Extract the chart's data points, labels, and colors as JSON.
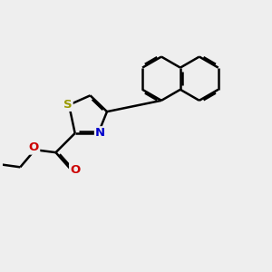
{
  "background_color": "#eeeeee",
  "bond_color": "#000000",
  "sulfur_color": "#999900",
  "nitrogen_color": "#0000cc",
  "oxygen_color": "#cc0000",
  "bond_width": 1.8,
  "dbo": 0.055,
  "figsize": [
    3.0,
    3.0
  ],
  "dpi": 100,
  "xlim": [
    0,
    10
  ],
  "ylim": [
    0,
    10
  ]
}
